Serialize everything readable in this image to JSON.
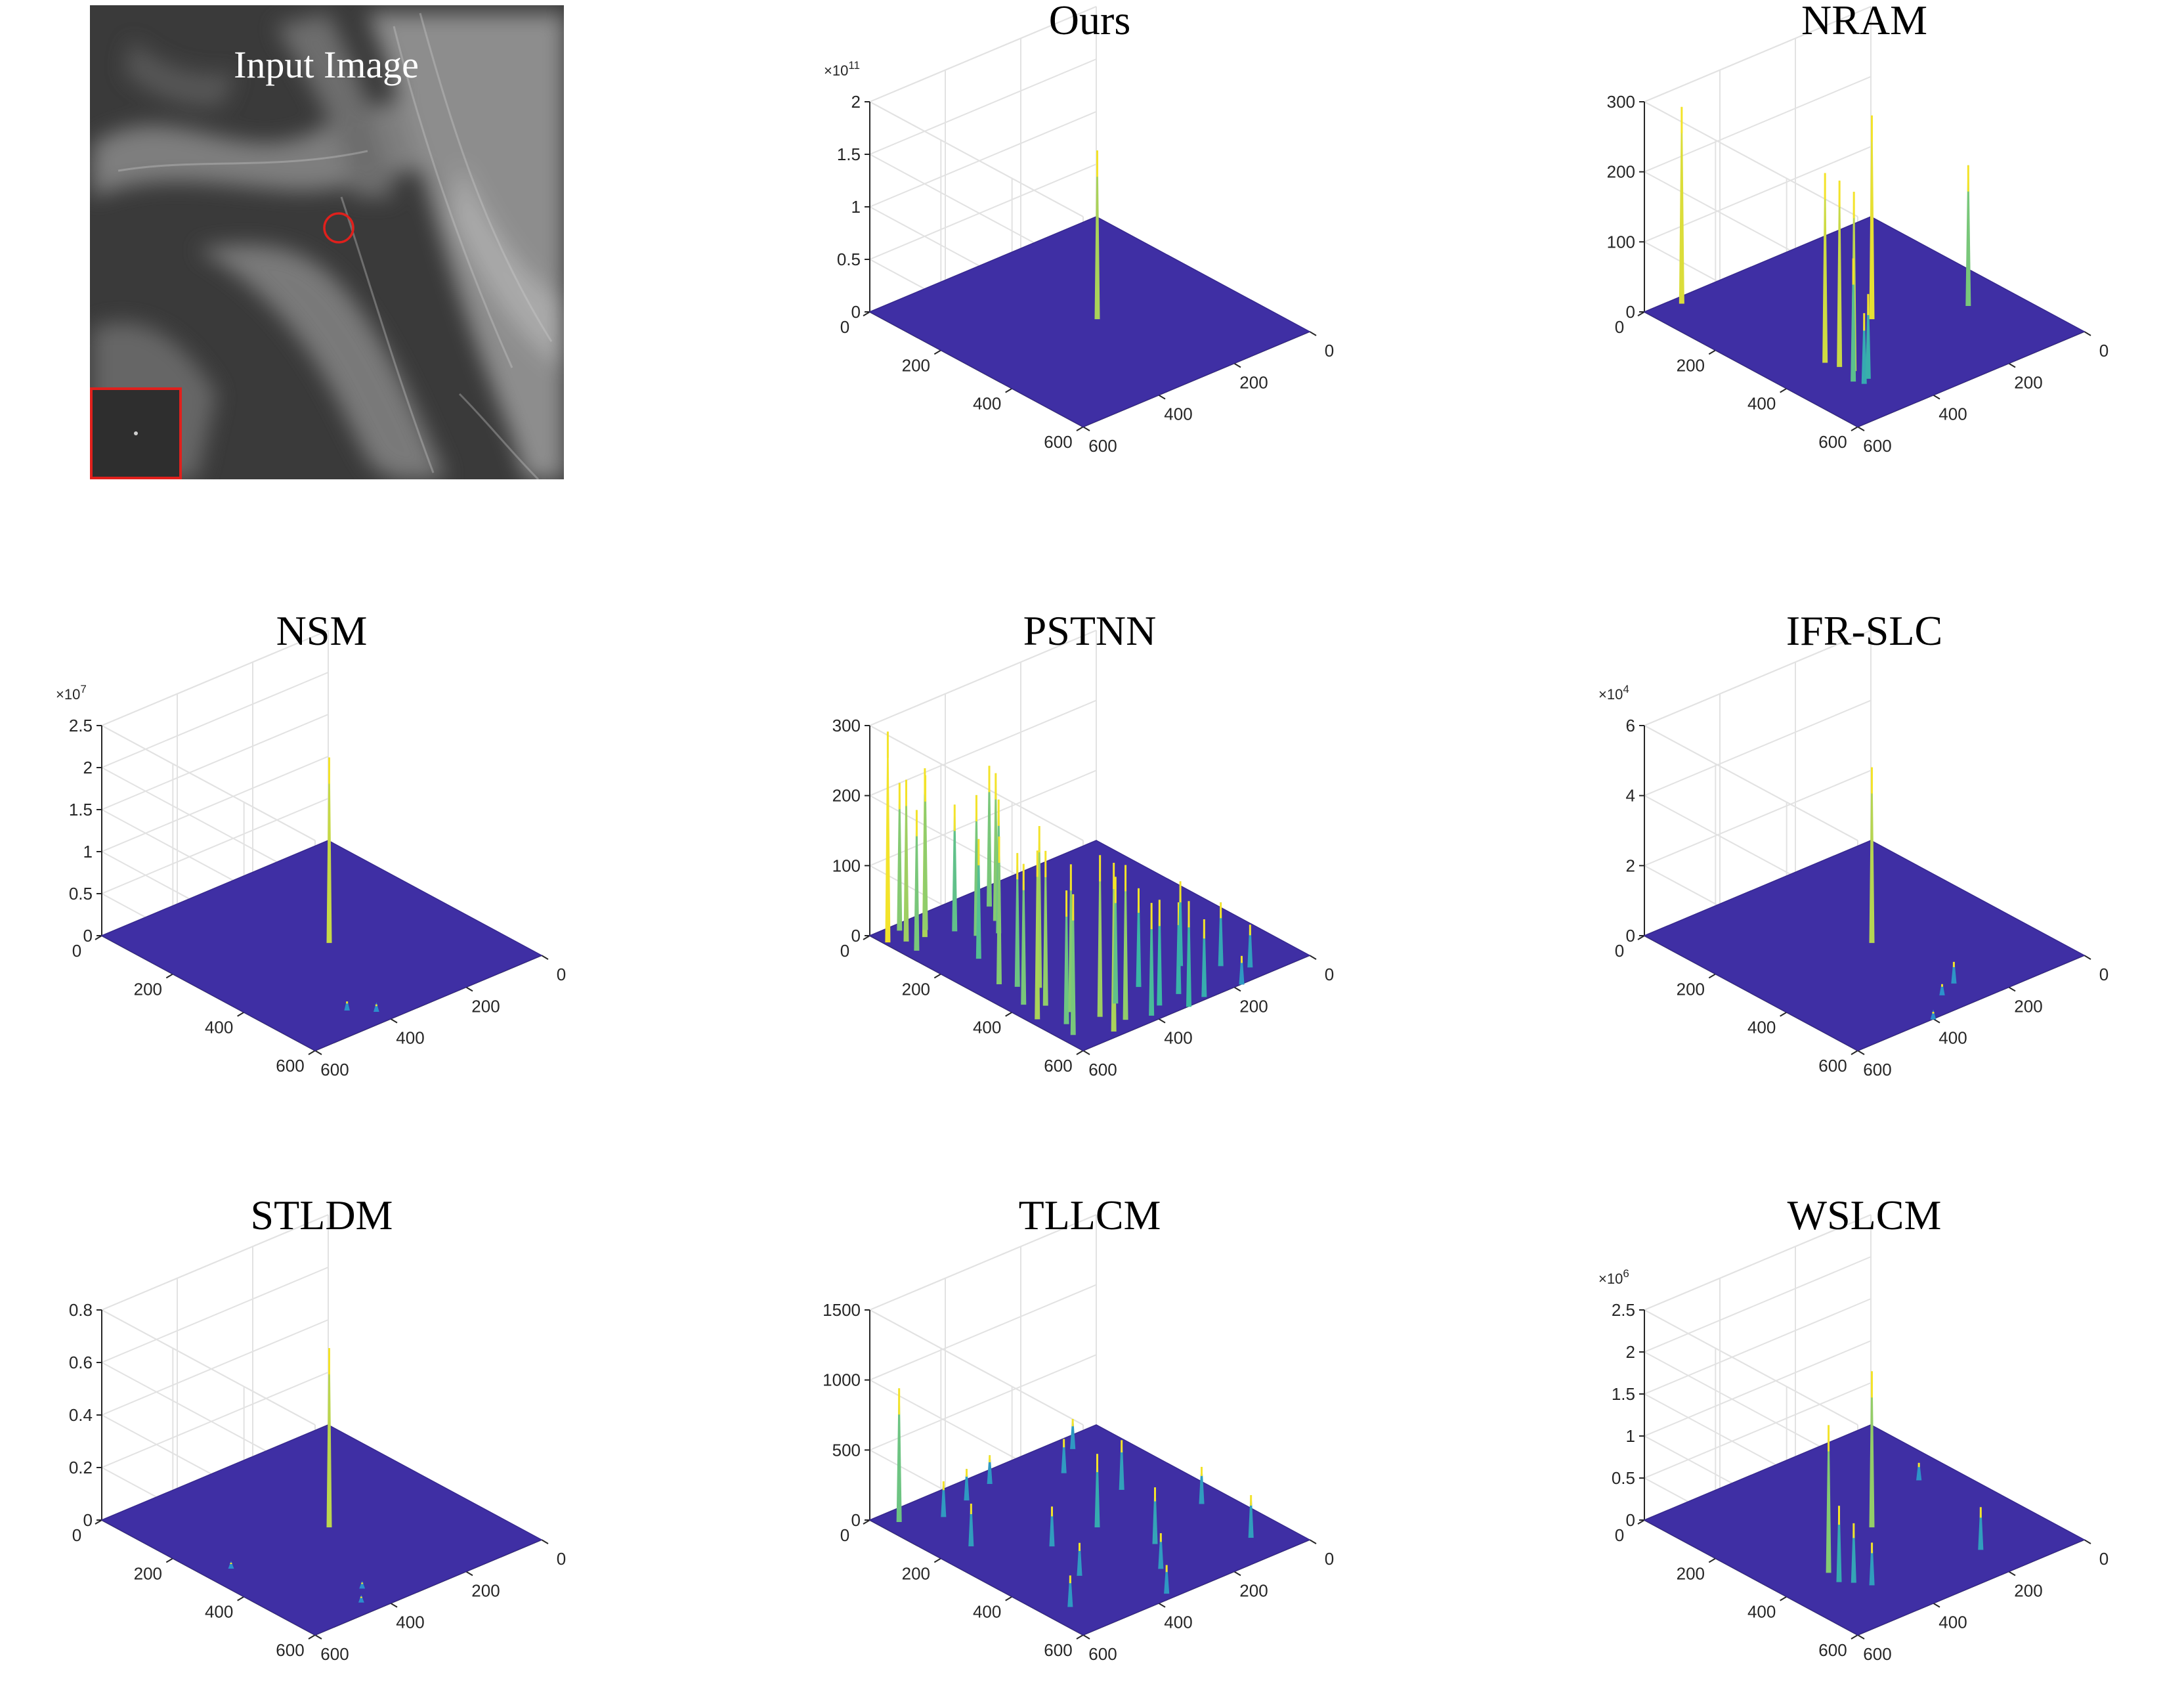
{
  "figure": {
    "input_image": {
      "title": "Input Image",
      "target_marker_color": "#e0201c",
      "inset_border_color": "#e0201c"
    },
    "colors": {
      "plane": "#3f2fa4",
      "spike_low": "#2a8ccf",
      "spike_mid": "#3cb9a2",
      "spike_high": "#f3e32a",
      "title_highlight": "#e0201c"
    }
  },
  "chart_data": [
    {
      "type": "surface3d",
      "title": "Ours",
      "title_color": "#e0201c",
      "x_ticks": [
        "0",
        "200",
        "400",
        "600"
      ],
      "y_ticks": [
        "0",
        "200",
        "400",
        "600"
      ],
      "zlim": [
        0,
        2
      ],
      "z_ticks": [
        "0",
        "0.5",
        "1",
        "1.5",
        "2"
      ],
      "z_exponent": "×10^11",
      "z_exponent_base": "×10",
      "z_exponent_power": "11",
      "peaks": [
        {
          "x": 320,
          "y": 300,
          "z": 1.6
        }
      ]
    },
    {
      "type": "surface3d",
      "title": "NRAM",
      "title_color": "#000000",
      "x_ticks": [
        "0",
        "200",
        "400",
        "600"
      ],
      "y_ticks": [
        "0",
        "200",
        "400",
        "600"
      ],
      "zlim": [
        0,
        300
      ],
      "z_ticks": [
        "0",
        "100",
        "200",
        "300"
      ],
      "peaks": [
        {
          "x": 320,
          "y": 300,
          "z": 290
        },
        {
          "x": 80,
          "y": 20,
          "z": 280
        },
        {
          "x": 130,
          "y": 370,
          "z": 270
        },
        {
          "x": 140,
          "y": 400,
          "z": 265
        },
        {
          "x": 150,
          "y": 430,
          "z": 255
        },
        {
          "x": 120,
          "y": 460,
          "z": 175
        },
        {
          "x": 130,
          "y": 480,
          "z": 100
        },
        {
          "x": 150,
          "y": 470,
          "z": 120
        },
        {
          "x": 500,
          "y": 380,
          "z": 200
        }
      ]
    },
    {
      "type": "surface3d",
      "title": "NSM",
      "title_color": "#000000",
      "x_ticks": [
        "0",
        "200",
        "400",
        "600"
      ],
      "y_ticks": [
        "0",
        "200",
        "400",
        "600"
      ],
      "zlim": [
        0,
        2.5
      ],
      "z_ticks": [
        "0",
        "0.5",
        "1",
        "1.5",
        "2",
        "2.5"
      ],
      "z_exponent": "×10^7",
      "z_exponent_base": "×10",
      "z_exponent_power": "7",
      "peaks": [
        {
          "x": 320,
          "y": 300,
          "z": 2.2
        },
        {
          "x": 160,
          "y": 520,
          "z": 0.1
        },
        {
          "x": 200,
          "y": 560,
          "z": 0.08
        }
      ]
    },
    {
      "type": "surface3d",
      "title": "PSTNN",
      "title_color": "#000000",
      "x_ticks": [
        "0",
        "200",
        "400",
        "600"
      ],
      "y_ticks": [
        "0",
        "200",
        "400",
        "600"
      ],
      "zlim": [
        0,
        300
      ],
      "z_ticks": [
        "0",
        "100",
        "200",
        "300"
      ],
      "peaks": [
        {
          "x": 10,
          "y": 40,
          "z": 300
        },
        {
          "x": 40,
          "y": 60,
          "z": 230
        },
        {
          "x": 60,
          "y": 20,
          "z": 210
        },
        {
          "x": 80,
          "y": 70,
          "z": 240
        },
        {
          "x": 30,
          "y": 100,
          "z": 200
        },
        {
          "x": 100,
          "y": 50,
          "z": 220
        },
        {
          "x": 140,
          "y": 90,
          "z": 180
        },
        {
          "x": 160,
          "y": 130,
          "z": 200
        },
        {
          "x": 200,
          "y": 150,
          "z": 190
        },
        {
          "x": 230,
          "y": 110,
          "z": 210
        },
        {
          "x": 100,
          "y": 200,
          "z": 170
        },
        {
          "x": 260,
          "y": 60,
          "z": 200
        },
        {
          "x": 60,
          "y": 300,
          "z": 210
        },
        {
          "x": 80,
          "y": 330,
          "z": 190
        },
        {
          "x": 110,
          "y": 360,
          "z": 230
        },
        {
          "x": 40,
          "y": 390,
          "z": 200
        },
        {
          "x": 70,
          "y": 420,
          "z": 220
        },
        {
          "x": 20,
          "y": 450,
          "z": 240
        },
        {
          "x": 90,
          "y": 470,
          "z": 210
        },
        {
          "x": 50,
          "y": 500,
          "z": 190
        },
        {
          "x": 120,
          "y": 520,
          "z": 230
        },
        {
          "x": 30,
          "y": 540,
          "z": 200
        },
        {
          "x": 150,
          "y": 560,
          "z": 220
        },
        {
          "x": 100,
          "y": 580,
          "z": 240
        },
        {
          "x": 180,
          "y": 500,
          "z": 180
        },
        {
          "x": 200,
          "y": 580,
          "z": 160
        },
        {
          "x": 240,
          "y": 560,
          "z": 150
        },
        {
          "x": 280,
          "y": 600,
          "z": 150
        },
        {
          "x": 260,
          "y": 480,
          "z": 140
        },
        {
          "x": 300,
          "y": 550,
          "z": 130
        },
        {
          "x": 330,
          "y": 590,
          "z": 110
        },
        {
          "x": 420,
          "y": 600,
          "z": 40
        },
        {
          "x": 480,
          "y": 560,
          "z": 60
        },
        {
          "x": 440,
          "y": 520,
          "z": 90
        },
        {
          "x": 380,
          "y": 470,
          "z": 120
        }
      ]
    },
    {
      "type": "surface3d",
      "title": "IFR-SLC",
      "title_color": "#000000",
      "x_ticks": [
        "0",
        "200",
        "400",
        "600"
      ],
      "y_ticks": [
        "0",
        "200",
        "400",
        "600"
      ],
      "zlim": [
        0,
        6
      ],
      "z_ticks": [
        "0",
        "2",
        "4",
        "6"
      ],
      "z_exponent": "×10^4",
      "z_exponent_base": "×10",
      "z_exponent_power": "4",
      "peaks": [
        {
          "x": 320,
          "y": 300,
          "z": 5.0
        },
        {
          "x": 330,
          "y": 520,
          "z": 0.6
        },
        {
          "x": 280,
          "y": 540,
          "z": 0.3
        },
        {
          "x": 200,
          "y": 600,
          "z": 0.2
        }
      ]
    },
    {
      "type": "surface3d",
      "title": "STLDM",
      "title_color": "#000000",
      "x_ticks": [
        "0",
        "200",
        "400",
        "600"
      ],
      "y_ticks": [
        "0",
        "200",
        "400",
        "600"
      ],
      "zlim": [
        0,
        0.8
      ],
      "z_ticks": [
        "0",
        "0.2",
        "0.4",
        "0.6",
        "0.8"
      ],
      "peaks": [
        {
          "x": 320,
          "y": 300,
          "z": 0.68
        },
        {
          "x": 160,
          "y": 560,
          "z": 0.02
        },
        {
          "x": 200,
          "y": 520,
          "z": 0.02
        },
        {
          "x": 60,
          "y": 300,
          "z": 0.02
        }
      ]
    },
    {
      "type": "surface3d",
      "title": "TLLCM",
      "title_color": "#000000",
      "x_ticks": [
        "0",
        "200",
        "400",
        "600"
      ],
      "y_ticks": [
        "0",
        "200",
        "400",
        "600"
      ],
      "zlim": [
        0,
        1500
      ],
      "z_ticks": [
        "0",
        "500",
        "1000",
        "1500"
      ],
      "peaks": [
        {
          "x": 40,
          "y": 40,
          "z": 950
        },
        {
          "x": 120,
          "y": 80,
          "z": 250
        },
        {
          "x": 200,
          "y": 60,
          "z": 220
        },
        {
          "x": 280,
          "y": 40,
          "z": 200
        },
        {
          "x": 80,
          "y": 200,
          "z": 300
        },
        {
          "x": 200,
          "y": 300,
          "z": 280
        },
        {
          "x": 320,
          "y": 300,
          "z": 520
        },
        {
          "x": 360,
          "y": 420,
          "z": 400
        },
        {
          "x": 460,
          "y": 220,
          "z": 350
        },
        {
          "x": 520,
          "y": 520,
          "z": 300
        },
        {
          "x": 300,
          "y": 500,
          "z": 250
        },
        {
          "x": 160,
          "y": 420,
          "z": 230
        },
        {
          "x": 420,
          "y": 100,
          "z": 240
        },
        {
          "x": 540,
          "y": 360,
          "z": 260
        },
        {
          "x": 60,
          "y": 500,
          "z": 220
        },
        {
          "x": 240,
          "y": 580,
          "z": 200
        },
        {
          "x": 500,
          "y": 40,
          "z": 210
        }
      ]
    },
    {
      "type": "surface3d",
      "title": "WSLCM",
      "title_color": "#000000",
      "x_ticks": [
        "0",
        "200",
        "400",
        "600"
      ],
      "y_ticks": [
        "0",
        "200",
        "400",
        "600"
      ],
      "zlim": [
        0,
        2.5
      ],
      "z_ticks": [
        "0",
        "0.5",
        "1",
        "1.5",
        "2",
        "2.5"
      ],
      "z_exponent": "×10^6",
      "z_exponent_base": "×10",
      "z_exponent_power": "6",
      "peaks": [
        {
          "x": 320,
          "y": 300,
          "z": 1.85
        },
        {
          "x": 130,
          "y": 380,
          "z": 1.75
        },
        {
          "x": 120,
          "y": 420,
          "z": 0.9
        },
        {
          "x": 140,
          "y": 440,
          "z": 0.7
        },
        {
          "x": 160,
          "y": 470,
          "z": 0.5
        },
        {
          "x": 420,
          "y": 500,
          "z": 0.5
        },
        {
          "x": 520,
          "y": 220,
          "z": 0.2
        }
      ]
    }
  ]
}
